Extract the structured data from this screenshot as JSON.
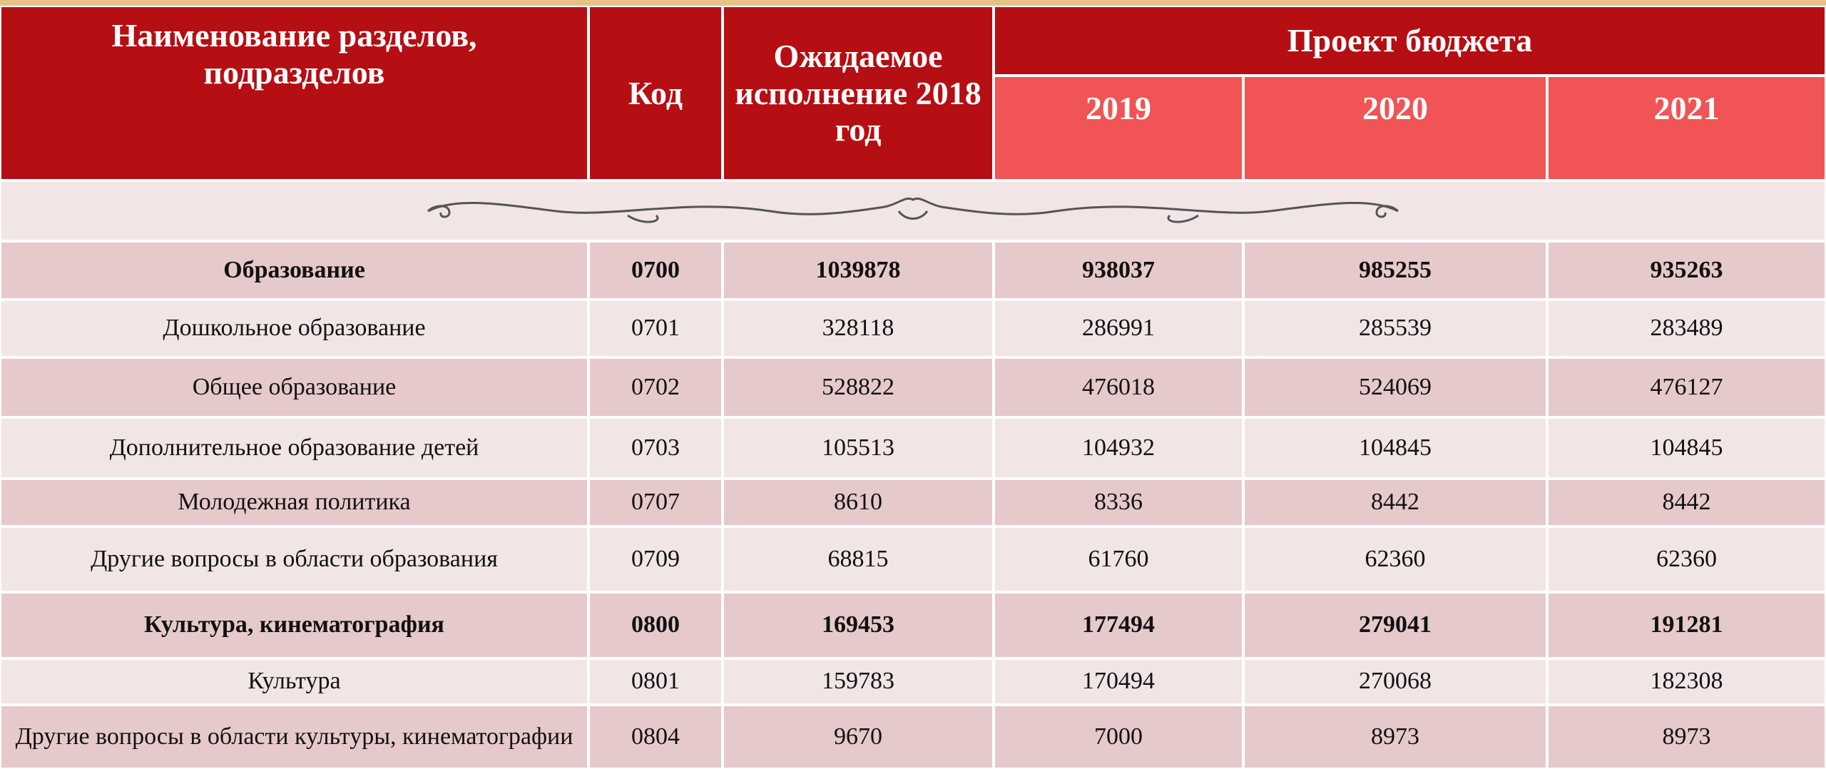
{
  "table": {
    "header": {
      "name": "Наименование разделов, подразделов",
      "code": "Код",
      "expected": "Ожидаемое исполнение 2018 год",
      "project": "Проект бюджета",
      "years": [
        "2019",
        "2020",
        "2021"
      ]
    },
    "rows": [
      [
        "Образование",
        "0700",
        1039878,
        938037,
        985255,
        935263
      ],
      [
        "Дошкольное образование",
        "0701",
        328118,
        286991,
        285539,
        283489
      ],
      [
        "Общее образование",
        "0702",
        528822,
        476018,
        524069,
        476127
      ],
      [
        "Дополнительное образование детей",
        "0703",
        105513,
        104932,
        104845,
        104845
      ],
      [
        "Молодежная политика",
        "0707",
        8610,
        8336,
        8442,
        8442
      ],
      [
        "Другие вопросы в области образования",
        "0709",
        68815,
        61760,
        62360,
        62360
      ],
      [
        "Культура, кинематография",
        "0800",
        169453,
        177494,
        279041,
        191281
      ],
      [
        "Культура",
        "0801",
        159783,
        170494,
        270068,
        182308
      ],
      [
        "Другие вопросы в области культуры, кинематографии",
        "0804",
        9670,
        7000,
        8973,
        8973
      ]
    ]
  }
}
